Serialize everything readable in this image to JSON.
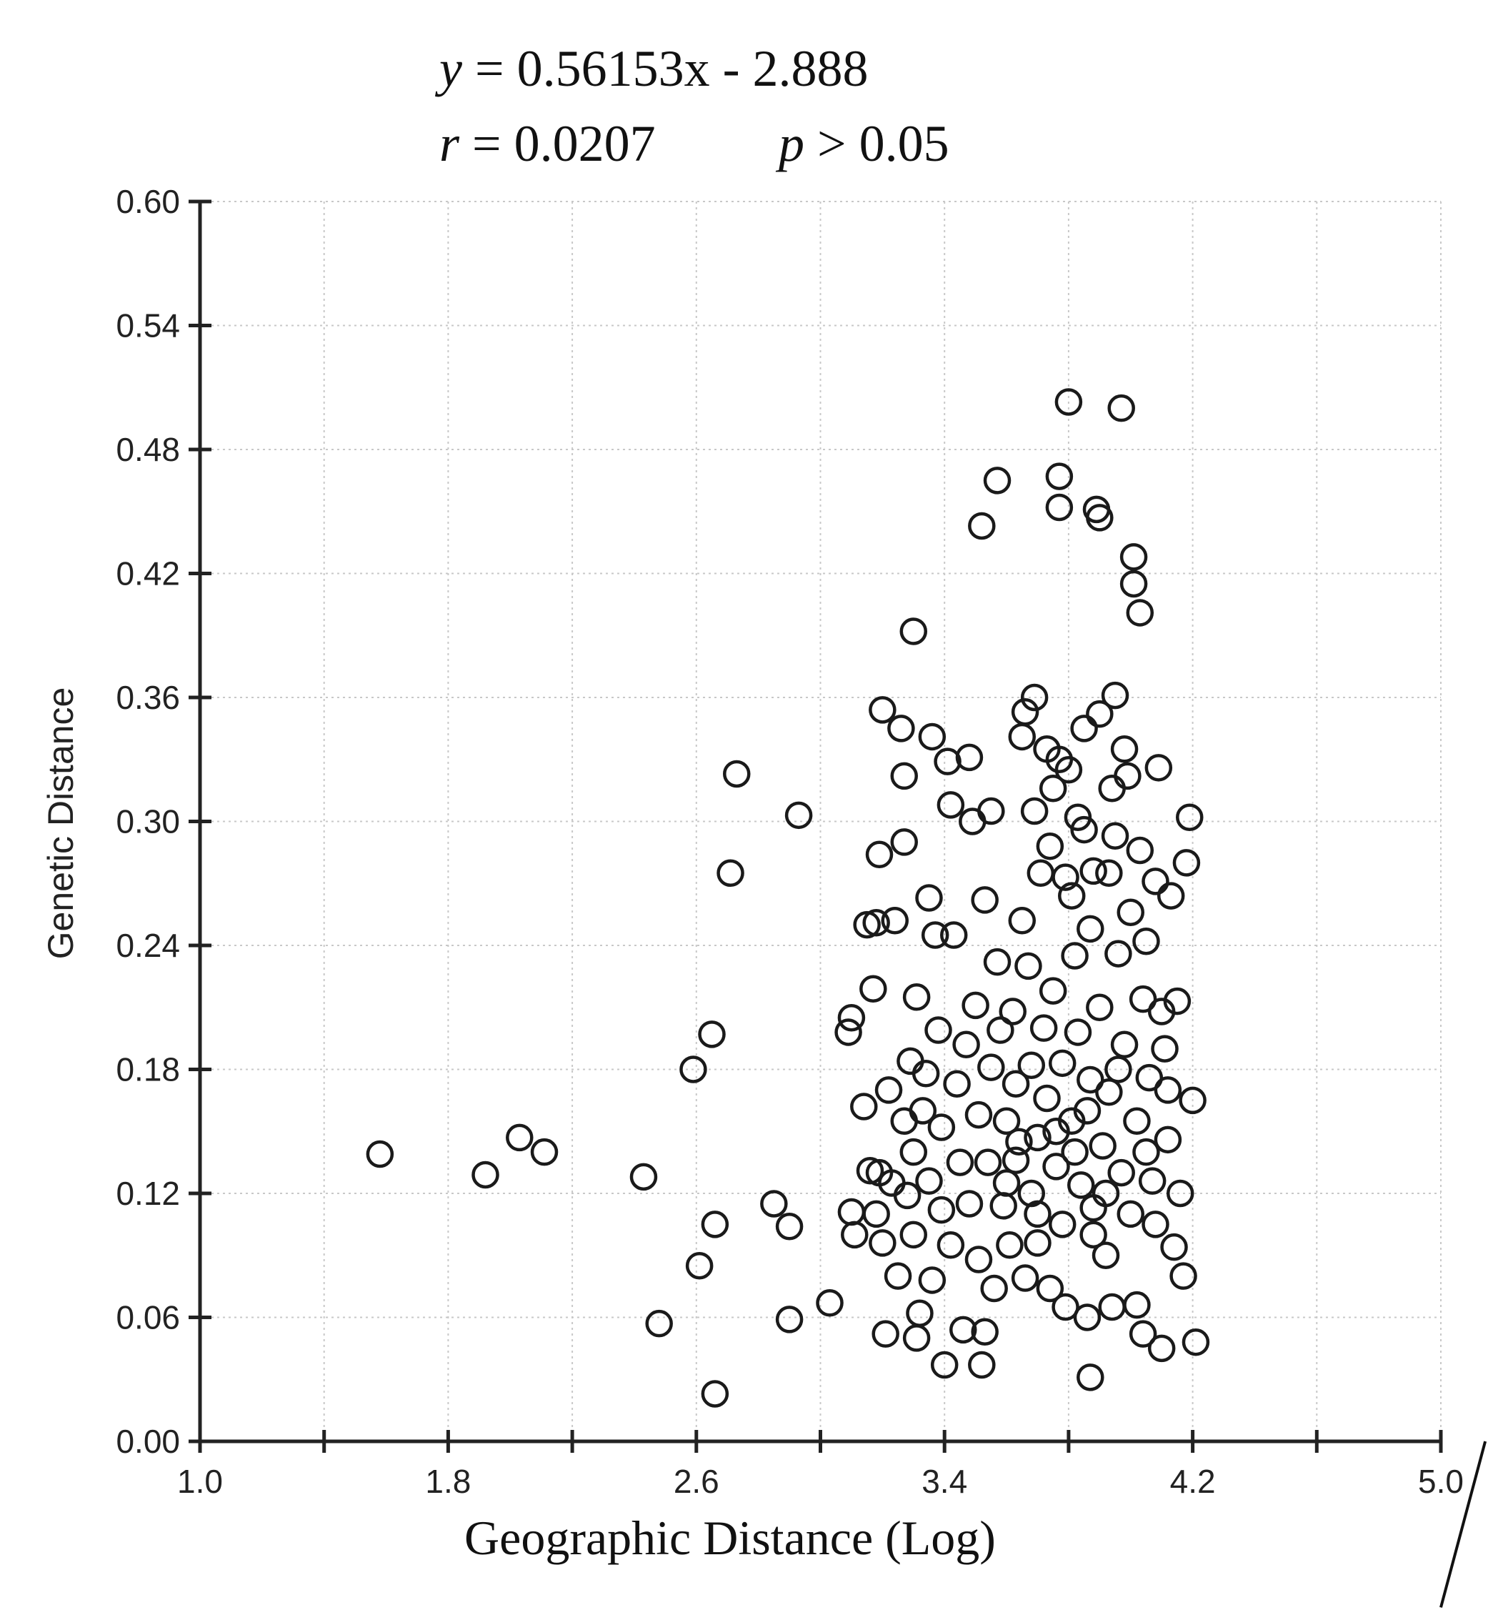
{
  "chart_data": {
    "type": "scatter",
    "equation": {
      "line1": {
        "var": "y",
        "rhs": " = 0.56153x - 2.888"
      },
      "r_text": {
        "var": "r",
        "rhs": " = 0.0207"
      },
      "p_text": {
        "var": "p",
        "rhs": " > 0.05"
      }
    },
    "xlabel": "Geographic Distance (Log)",
    "ylabel": "Genetic Distance",
    "xlim": [
      1.0,
      5.0
    ],
    "ylim": [
      0.0,
      0.6
    ],
    "x_ticks": [
      "1.0",
      "1.8",
      "2.6",
      "3.4",
      "4.2",
      "5.0"
    ],
    "y_ticks": [
      "0.00",
      "0.06",
      "0.12",
      "0.18",
      "0.24",
      "0.30",
      "0.36",
      "0.42",
      "0.48",
      "0.54",
      "0.60"
    ],
    "grid": true,
    "regression": {
      "slope": 0.56153,
      "intercept": -2.888
    },
    "points": [
      [
        1.58,
        0.139
      ],
      [
        1.92,
        0.129
      ],
      [
        2.03,
        0.147
      ],
      [
        2.11,
        0.14
      ],
      [
        2.43,
        0.128
      ],
      [
        2.48,
        0.057
      ],
      [
        2.59,
        0.18
      ],
      [
        2.61,
        0.085
      ],
      [
        2.65,
        0.197
      ],
      [
        2.66,
        0.105
      ],
      [
        2.66,
        0.023
      ],
      [
        2.71,
        0.275
      ],
      [
        2.73,
        0.323
      ],
      [
        2.85,
        0.115
      ],
      [
        2.9,
        0.104
      ],
      [
        2.9,
        0.059
      ],
      [
        2.93,
        0.303
      ],
      [
        3.03,
        0.067
      ],
      [
        3.09,
        0.198
      ],
      [
        3.1,
        0.205
      ],
      [
        3.1,
        0.111
      ],
      [
        3.11,
        0.1
      ],
      [
        3.14,
        0.162
      ],
      [
        3.15,
        0.25
      ],
      [
        3.16,
        0.131
      ],
      [
        3.17,
        0.219
      ],
      [
        3.18,
        0.251
      ],
      [
        3.18,
        0.11
      ],
      [
        3.19,
        0.13
      ],
      [
        3.19,
        0.284
      ],
      [
        3.2,
        0.354
      ],
      [
        3.2,
        0.096
      ],
      [
        3.21,
        0.052
      ],
      [
        3.22,
        0.17
      ],
      [
        3.23,
        0.125
      ],
      [
        3.24,
        0.252
      ],
      [
        3.25,
        0.08
      ],
      [
        3.26,
        0.345
      ],
      [
        3.27,
        0.29
      ],
      [
        3.27,
        0.155
      ],
      [
        3.27,
        0.322
      ],
      [
        3.28,
        0.119
      ],
      [
        3.29,
        0.184
      ],
      [
        3.3,
        0.392
      ],
      [
        3.3,
        0.14
      ],
      [
        3.3,
        0.1
      ],
      [
        3.31,
        0.05
      ],
      [
        3.31,
        0.215
      ],
      [
        3.32,
        0.062
      ],
      [
        3.33,
        0.16
      ],
      [
        3.34,
        0.178
      ],
      [
        3.35,
        0.263
      ],
      [
        3.35,
        0.126
      ],
      [
        3.36,
        0.341
      ],
      [
        3.36,
        0.078
      ],
      [
        3.37,
        0.245
      ],
      [
        3.38,
        0.199
      ],
      [
        3.39,
        0.152
      ],
      [
        3.39,
        0.112
      ],
      [
        3.4,
        0.037
      ],
      [
        3.41,
        0.329
      ],
      [
        3.42,
        0.308
      ],
      [
        3.42,
        0.095
      ],
      [
        3.43,
        0.245
      ],
      [
        3.44,
        0.173
      ],
      [
        3.45,
        0.135
      ],
      [
        3.46,
        0.054
      ],
      [
        3.47,
        0.192
      ],
      [
        3.48,
        0.331
      ],
      [
        3.48,
        0.115
      ],
      [
        3.49,
        0.3
      ],
      [
        3.5,
        0.211
      ],
      [
        3.51,
        0.158
      ],
      [
        3.51,
        0.088
      ],
      [
        3.52,
        0.443
      ],
      [
        3.52,
        0.037
      ],
      [
        3.53,
        0.262
      ],
      [
        3.53,
        0.053
      ],
      [
        3.54,
        0.135
      ],
      [
        3.55,
        0.305
      ],
      [
        3.55,
        0.181
      ],
      [
        3.56,
        0.074
      ],
      [
        3.57,
        0.465
      ],
      [
        3.57,
        0.232
      ],
      [
        3.58,
        0.199
      ],
      [
        3.59,
        0.114
      ],
      [
        3.6,
        0.155
      ],
      [
        3.61,
        0.095
      ],
      [
        3.62,
        0.208
      ],
      [
        3.63,
        0.173
      ],
      [
        3.63,
        0.136
      ],
      [
        3.65,
        0.341
      ],
      [
        3.65,
        0.252
      ],
      [
        3.66,
        0.353
      ],
      [
        3.66,
        0.079
      ],
      [
        3.67,
        0.23
      ],
      [
        3.68,
        0.182
      ],
      [
        3.68,
        0.12
      ],
      [
        3.69,
        0.36
      ],
      [
        3.69,
        0.305
      ],
      [
        3.7,
        0.147
      ],
      [
        3.7,
        0.096
      ],
      [
        3.71,
        0.275
      ],
      [
        3.72,
        0.2
      ],
      [
        3.73,
        0.335
      ],
      [
        3.73,
        0.166
      ],
      [
        3.74,
        0.288
      ],
      [
        3.74,
        0.074
      ],
      [
        3.75,
        0.316
      ],
      [
        3.75,
        0.218
      ],
      [
        3.76,
        0.133
      ],
      [
        3.77,
        0.467
      ],
      [
        3.77,
        0.452
      ],
      [
        3.77,
        0.33
      ],
      [
        3.78,
        0.183
      ],
      [
        3.78,
        0.105
      ],
      [
        3.79,
        0.273
      ],
      [
        3.79,
        0.065
      ],
      [
        3.8,
        0.503
      ],
      [
        3.8,
        0.325
      ],
      [
        3.81,
        0.264
      ],
      [
        3.81,
        0.155
      ],
      [
        3.82,
        0.235
      ],
      [
        3.83,
        0.302
      ],
      [
        3.83,
        0.198
      ],
      [
        3.84,
        0.124
      ],
      [
        3.85,
        0.345
      ],
      [
        3.85,
        0.296
      ],
      [
        3.86,
        0.06
      ],
      [
        3.87,
        0.248
      ],
      [
        3.87,
        0.175
      ],
      [
        3.87,
        0.031
      ],
      [
        3.88,
        0.276
      ],
      [
        3.88,
        0.113
      ],
      [
        3.89,
        0.451
      ],
      [
        3.9,
        0.447
      ],
      [
        3.9,
        0.352
      ],
      [
        3.9,
        0.21
      ],
      [
        3.91,
        0.143
      ],
      [
        3.92,
        0.09
      ],
      [
        3.93,
        0.275
      ],
      [
        3.93,
        0.169
      ],
      [
        3.94,
        0.316
      ],
      [
        3.94,
        0.065
      ],
      [
        3.95,
        0.361
      ],
      [
        3.95,
        0.293
      ],
      [
        3.96,
        0.236
      ],
      [
        3.97,
        0.5
      ],
      [
        3.97,
        0.13
      ],
      [
        3.98,
        0.335
      ],
      [
        3.98,
        0.192
      ],
      [
        3.99,
        0.322
      ],
      [
        4.0,
        0.256
      ],
      [
        4.0,
        0.11
      ],
      [
        4.01,
        0.428
      ],
      [
        4.01,
        0.415
      ],
      [
        4.02,
        0.155
      ],
      [
        4.02,
        0.066
      ],
      [
        4.03,
        0.401
      ],
      [
        4.03,
        0.286
      ],
      [
        4.04,
        0.214
      ],
      [
        4.04,
        0.052
      ],
      [
        4.05,
        0.242
      ],
      [
        4.06,
        0.176
      ],
      [
        4.07,
        0.126
      ],
      [
        4.08,
        0.271
      ],
      [
        4.09,
        0.326
      ],
      [
        4.1,
        0.208
      ],
      [
        4.1,
        0.045
      ],
      [
        4.11,
        0.19
      ],
      [
        4.12,
        0.146
      ],
      [
        4.13,
        0.264
      ],
      [
        4.14,
        0.094
      ],
      [
        4.15,
        0.213
      ],
      [
        4.16,
        0.12
      ],
      [
        4.17,
        0.08
      ],
      [
        4.18,
        0.28
      ],
      [
        4.19,
        0.302
      ],
      [
        4.2,
        0.165
      ],
      [
        4.21,
        0.048
      ],
      [
        3.86,
        0.16
      ],
      [
        3.92,
        0.12
      ],
      [
        3.96,
        0.18
      ],
      [
        4.05,
        0.14
      ],
      [
        4.08,
        0.105
      ],
      [
        4.12,
        0.17
      ],
      [
        3.6,
        0.125
      ],
      [
        3.64,
        0.145
      ],
      [
        3.7,
        0.11
      ],
      [
        3.76,
        0.15
      ],
      [
        3.82,
        0.14
      ],
      [
        3.88,
        0.1
      ]
    ]
  }
}
